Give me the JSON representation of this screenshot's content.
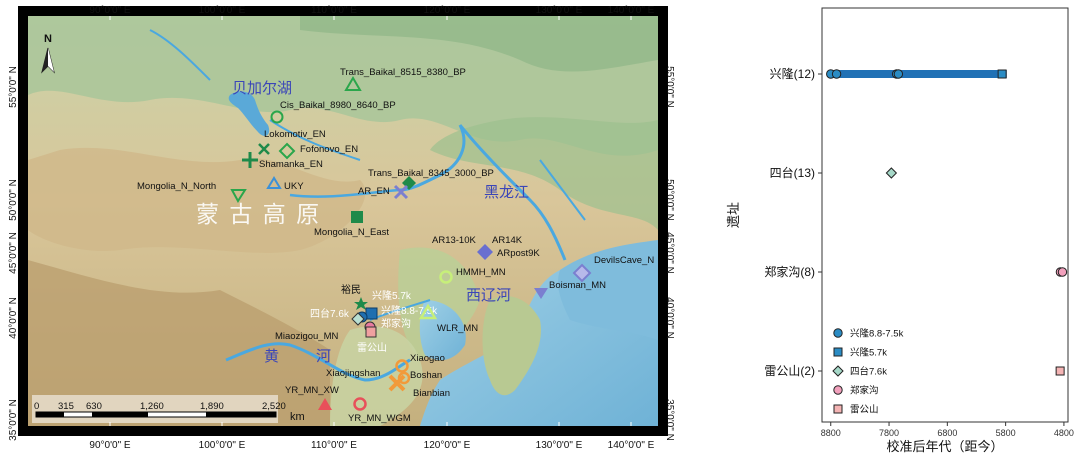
{
  "map": {
    "lon_ticks": [
      "90°0'0\" E",
      "100°0'0\" E",
      "110°0'0\" E",
      "120°0'0\" E",
      "130°0'0\" E",
      "140°0'0\" E"
    ],
    "lat_ticks": [
      "55°0'0\" N",
      "50°0'0\" N",
      "45°0'0\" N",
      "40°0'0\" N",
      "35°0'0\" N"
    ],
    "north_label": "N",
    "region_labels": {
      "baikal": "贝加尔湖",
      "mongolian_plateau": "蒙 古 高 原",
      "heilongjiang": "黑龙江",
      "xiliaohe": "西辽河",
      "yellow_river_1": "黄",
      "yellow_river_2": "河"
    },
    "scale": {
      "ticks": [
        "0",
        "315",
        "630",
        "1,260",
        "1,890",
        "2,520"
      ],
      "unit": "km"
    },
    "sites": [
      {
        "label": "Trans_Baikal_8515_8380_BP",
        "symbol": "triangle-up",
        "color": "#2aa64b"
      },
      {
        "label": "Cis_Baikal_8980_8640_BP",
        "symbol": "circle-open",
        "color": "#2aa64b"
      },
      {
        "label": "Lokomotiv_EN",
        "symbol": "x",
        "color": "#1e8a4a"
      },
      {
        "label": "Fofonovo_EN",
        "symbol": "diamond-open",
        "color": "#2aa64b"
      },
      {
        "label": "Shamanka_EN",
        "symbol": "plus",
        "color": "#1e8a4a"
      },
      {
        "label": "UKY",
        "symbol": "triangle-up-open",
        "color": "#3a90d8"
      },
      {
        "label": "Mongolia_N_North",
        "symbol": "triangle-down-open",
        "color": "#2aa64b"
      },
      {
        "label": "Trans_Baikal_8345_3000_BP",
        "symbol": "diamond",
        "color": "#1e8a4a"
      },
      {
        "label": "AR_EN",
        "symbol": "x",
        "color": "#7b7fd0"
      },
      {
        "label": "Mongolia_N_East",
        "symbol": "square",
        "color": "#1e8a4a"
      },
      {
        "label": "AR13-10K",
        "symbol": "",
        "color": "#6a6fd0"
      },
      {
        "label": "AR14K",
        "symbol": "",
        "color": "#6a6fd0"
      },
      {
        "label": "ARpost9K",
        "symbol": "diamond",
        "color": "#6a6fd0"
      },
      {
        "label": "DevilsCave_N",
        "symbol": "diamond-open",
        "color": "#7b7fd0"
      },
      {
        "label": "HMMH_MN",
        "symbol": "circle-open",
        "color": "#c7ef7a"
      },
      {
        "label": "Boisman_MN",
        "symbol": "triangle-down",
        "color": "#7b7fd0"
      },
      {
        "label": "裕民",
        "symbol": "star",
        "color": "#1e8a4a"
      },
      {
        "label": "兴隆5.7k",
        "symbol": "square",
        "color": "#1f6fb0"
      },
      {
        "label": "兴隆8.8-7.5k",
        "symbol": "circle",
        "color": "#1f6fb0"
      },
      {
        "label": "四台7.6k",
        "symbol": "diamond",
        "color": "#7fbfb0"
      },
      {
        "label": "郑家沟",
        "symbol": "circle",
        "color": "#e87aa0"
      },
      {
        "label": "雷公山",
        "symbol": "square",
        "color": "#f0a0a0"
      },
      {
        "label": "WLR_MN",
        "symbol": "triangle-up-open",
        "color": "#c7ef7a"
      },
      {
        "label": "Miaozigou_MN",
        "symbol": "",
        "color": "#c7ef7a"
      },
      {
        "label": "Xiaogao",
        "symbol": "circle-open",
        "color": "#f29a3a"
      },
      {
        "label": "Boshan",
        "symbol": "circle-open",
        "color": "#f29a3a"
      },
      {
        "label": "Xiaojingshan",
        "symbol": "",
        "color": "#f29a3a"
      },
      {
        "label": "Bianbian",
        "symbol": "x",
        "color": "#f29a3a"
      },
      {
        "label": "YR_MN_XW",
        "symbol": "triangle-up",
        "color": "#e8505a"
      },
      {
        "label": "YR_MN_WGM",
        "symbol": "circle-open",
        "color": "#e8505a"
      }
    ]
  },
  "chart_data": {
    "type": "scatter",
    "title": "",
    "xlabel": "校准后年代（距今）",
    "ylabel": "遗址",
    "x_reversed": true,
    "xlim": [
      8950,
      4730
    ],
    "x_ticks": [
      8800,
      7800,
      6800,
      5800,
      4800
    ],
    "categories": [
      "兴隆(12)",
      "四台(13)",
      "郑家沟(8)",
      "雷公山(2)"
    ],
    "ranges": [
      {
        "site": "兴隆(12)",
        "from": 8820,
        "to": 5780,
        "color": "#2171b5"
      },
      {
        "site": "郑家沟(8)",
        "from": 4890,
        "to": 4790,
        "color": "#e8608a"
      },
      {
        "site": "雷公山(2)",
        "from": 4900,
        "to": 4830,
        "color": "#e8608a"
      }
    ],
    "points": [
      {
        "site": "兴隆(12)",
        "x": 8800,
        "series": "兴隆8.8-7.5k"
      },
      {
        "site": "兴隆(12)",
        "x": 8700,
        "series": "兴隆8.8-7.5k"
      },
      {
        "site": "兴隆(12)",
        "x": 7670,
        "series": "兴隆8.8-7.5k"
      },
      {
        "site": "兴隆(12)",
        "x": 7640,
        "series": "兴隆8.8-7.5k"
      },
      {
        "site": "兴隆(12)",
        "x": 5860,
        "series": "兴隆5.7k"
      },
      {
        "site": "四台(13)",
        "x": 7760,
        "series": "四台7.6k"
      },
      {
        "site": "郑家沟(8)",
        "x": 4860,
        "series": "郑家沟"
      },
      {
        "site": "郑家沟(8)",
        "x": 4825,
        "series": "郑家沟"
      },
      {
        "site": "雷公山(2)",
        "x": 4865,
        "series": "雷公山"
      }
    ],
    "series": [
      {
        "name": "兴隆8.8-7.5k",
        "shape": "circle",
        "color": "#2b8cc4"
      },
      {
        "name": "兴隆5.7k",
        "shape": "square",
        "color": "#2b8cc4"
      },
      {
        "name": "四台7.6k",
        "shape": "diamond",
        "color": "#a6d8c8"
      },
      {
        "name": "郑家沟",
        "shape": "circle",
        "color": "#f2a0bc"
      },
      {
        "name": "雷公山",
        "shape": "square",
        "color": "#f4b4b4"
      }
    ],
    "legend_position": "bottom-left"
  }
}
